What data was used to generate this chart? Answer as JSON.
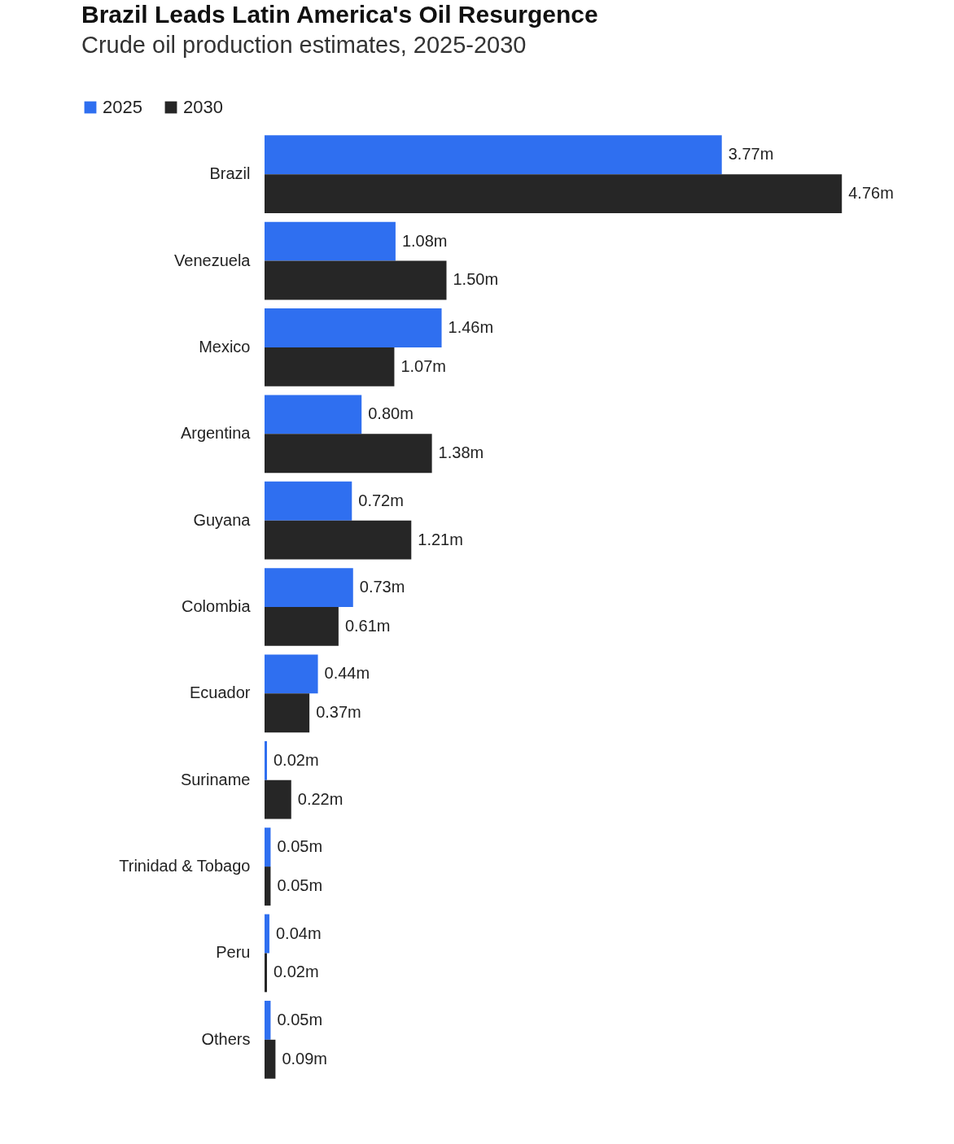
{
  "chart_data": {
    "type": "bar",
    "orientation": "horizontal",
    "title": "Brazil Leads Latin America's Oil Resurgence",
    "subtitle": "Crude oil production estimates, 2025-2030",
    "categories": [
      "Brazil",
      "Venezuela",
      "Mexico",
      "Argentina",
      "Guyana",
      "Colombia",
      "Ecuador",
      "Suriname",
      "Trinidad & Tobago",
      "Peru",
      "Others"
    ],
    "series": [
      {
        "name": "2025",
        "color": "#2f6ff0",
        "values": [
          3.77,
          1.08,
          1.46,
          0.8,
          0.72,
          0.73,
          0.44,
          0.02,
          0.05,
          0.04,
          0.05
        ],
        "value_labels": [
          "3.77m",
          "1.08m",
          "1.46m",
          "0.80m",
          "0.72m",
          "0.73m",
          "0.44m",
          "0.02m",
          "0.05m",
          "0.04m",
          "0.05m"
        ]
      },
      {
        "name": "2030",
        "color": "#262626",
        "values": [
          4.76,
          1.5,
          1.07,
          1.38,
          1.21,
          0.61,
          0.37,
          0.22,
          0.05,
          0.02,
          0.09
        ],
        "value_labels": [
          "4.76m",
          "1.50m",
          "1.07m",
          "1.38m",
          "1.21m",
          "0.61m",
          "0.37m",
          "0.22m",
          "0.05m",
          "0.02m",
          "0.09m"
        ]
      }
    ],
    "legend": "top left"
  }
}
